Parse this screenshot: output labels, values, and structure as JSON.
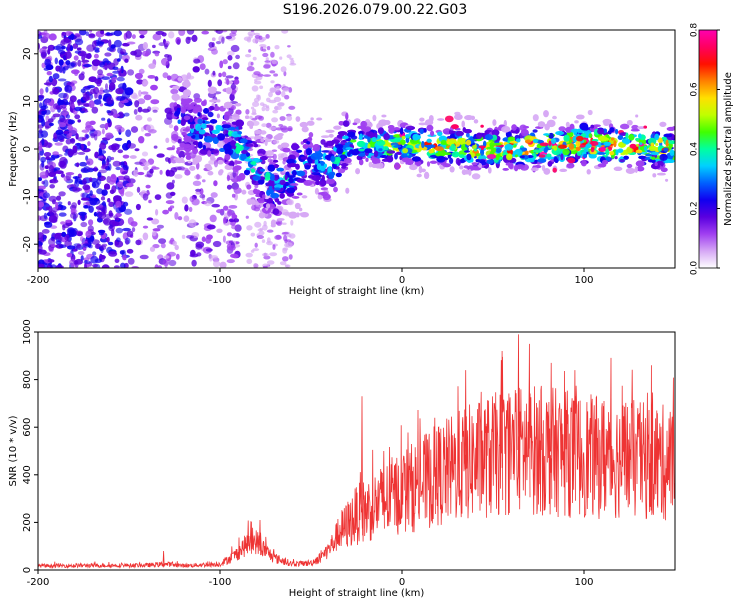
{
  "title": "S196.2026.079.00.22.G03",
  "chart_data": [
    {
      "type": "heatmap",
      "title": "S196.2026.079.00.22.G03",
      "xlabel": "Height of straight line (km)",
      "ylabel": "Frequency (Hz)",
      "xlim": [
        -200,
        150
      ],
      "ylim": [
        -25,
        25
      ],
      "xticks": [
        -200,
        -100,
        0,
        100
      ],
      "xtick_labels": [
        "-200",
        "-100",
        "0",
        "100"
      ],
      "yticks": [
        -20,
        -10,
        0,
        10,
        20
      ],
      "ytick_labels": [
        "-20",
        "-10",
        "0",
        "10",
        "20"
      ],
      "colorbar": {
        "label": "Normalized spectral amplitude",
        "range": [
          0.0,
          0.8
        ],
        "ticks": [
          0.0,
          0.2,
          0.4,
          0.6,
          0.8
        ],
        "tick_labels": [
          "0.0",
          "0.2",
          "0.4",
          "0.6",
          "0.8"
        ],
        "colors": [
          "#ffffff",
          "#d6a8f5",
          "#a040f0",
          "#5a00e0",
          "#1000f0",
          "#0060ff",
          "#00d0ff",
          "#00ffa0",
          "#40ff00",
          "#c0ff00",
          "#ffe000",
          "#ff8000",
          "#ff1000",
          "#ff0060",
          "#ff00b0"
        ]
      },
      "ridge_km": [
        -130,
        -110,
        -100,
        -90,
        -80,
        -75,
        -70,
        -60,
        -50,
        -40,
        -30,
        0,
        50,
        100,
        150
      ],
      "ridge_hz": [
        6,
        4,
        3,
        1,
        -4,
        -6,
        -8,
        -5,
        -2,
        -4,
        1,
        1,
        0,
        1,
        0
      ],
      "amplitude_km": [
        -200,
        -130,
        -110,
        -80,
        -60,
        -40,
        -30,
        0,
        50,
        100,
        150
      ],
      "amplitude_peak": [
        0.15,
        0.18,
        0.3,
        0.35,
        0.32,
        0.3,
        0.4,
        0.55,
        0.6,
        0.7,
        0.6
      ]
    },
    {
      "type": "line",
      "xlabel": "Height of straight line (km)",
      "ylabel": "SNR (10 * v/v)",
      "xlim": [
        -200,
        150
      ],
      "ylim": [
        0,
        1000
      ],
      "xticks": [
        -200,
        -100,
        0,
        100
      ],
      "xtick_labels": [
        "-200",
        "-100",
        "0",
        "100"
      ],
      "yticks": [
        0,
        200,
        400,
        600,
        800,
        1000
      ],
      "ytick_labels": [
        "0",
        "200",
        "400",
        "600",
        "800",
        "1000"
      ],
      "color": "#ee3333",
      "envelope_km": [
        -200,
        -140,
        -130,
        -120,
        -100,
        -92,
        -85,
        -80,
        -75,
        -70,
        -60,
        -50,
        -45,
        -40,
        -35,
        -30,
        -25,
        -20,
        -10,
        0,
        10,
        20,
        30,
        40,
        50,
        60,
        70,
        80,
        90,
        100,
        110,
        120,
        130,
        140,
        150
      ],
      "envelope_snr": [
        18,
        20,
        25,
        18,
        25,
        60,
        110,
        120,
        80,
        50,
        25,
        30,
        50,
        90,
        150,
        190,
        230,
        250,
        290,
        330,
        360,
        400,
        430,
        460,
        480,
        500,
        510,
        500,
        490,
        480,
        470,
        470,
        460,
        450,
        450
      ],
      "spikes_km": [
        -131,
        -83,
        -78,
        -22,
        -10,
        18,
        35,
        55,
        64,
        70,
        82,
        95,
        111,
        140
      ],
      "spikes_snr": [
        80,
        205,
        210,
        730,
        500,
        640,
        840,
        920,
        990,
        950,
        870,
        840,
        710,
        670
      ]
    }
  ]
}
